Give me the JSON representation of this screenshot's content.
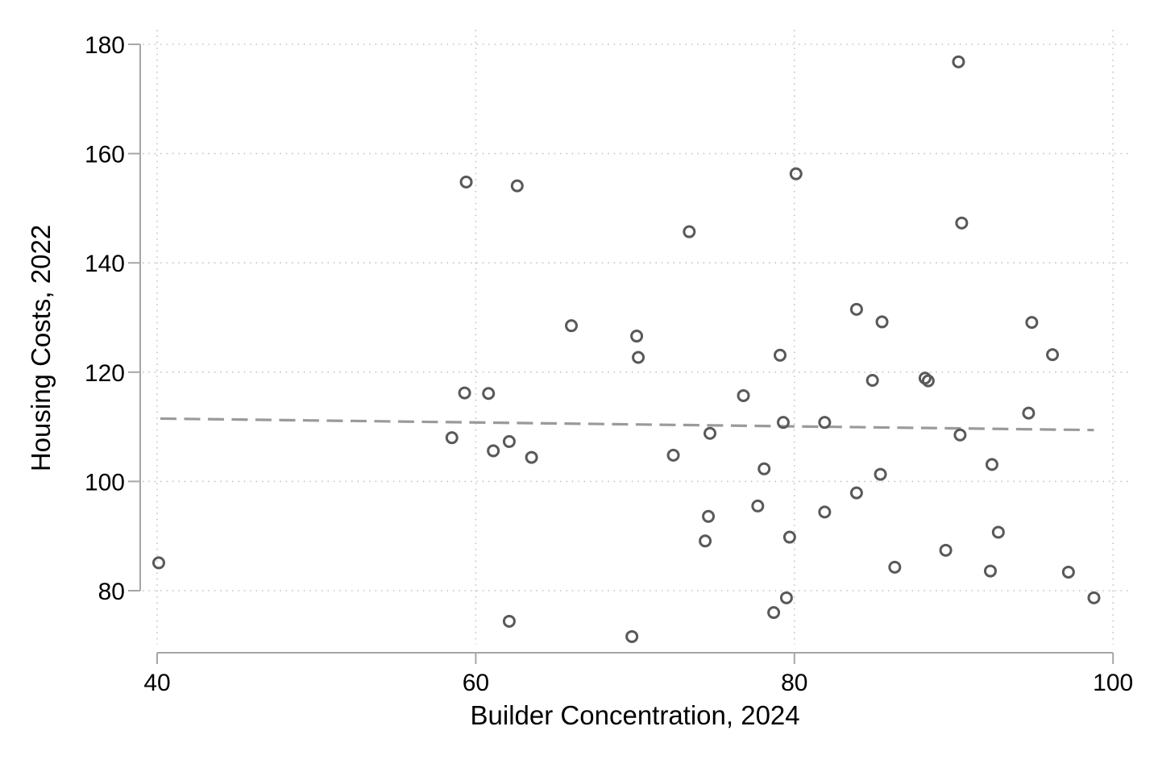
{
  "chart_data": {
    "type": "scatter",
    "title": "",
    "xlabel": "Builder Concentration, 2024",
    "ylabel": "Housing Costs, 2022",
    "xlim": [
      40,
      100
    ],
    "ylim": [
      80,
      180
    ],
    "xticks": [
      40,
      60,
      80,
      100
    ],
    "xtick_labels": [
      "40",
      "60",
      "80",
      "100"
    ],
    "yticks": [
      80,
      100,
      120,
      140,
      160,
      180
    ],
    "ytick_labels": [
      "80",
      "100",
      "120",
      "140",
      "160",
      "180"
    ],
    "grid": "dotted",
    "legend": "none",
    "marker": "open-circle",
    "points": [
      [
        40.1,
        85.1
      ],
      [
        58.5,
        108.0
      ],
      [
        59.3,
        116.2
      ],
      [
        59.4,
        154.8
      ],
      [
        60.8,
        116.1
      ],
      [
        61.1,
        105.6
      ],
      [
        62.1,
        107.3
      ],
      [
        62.1,
        74.4
      ],
      [
        62.6,
        154.1
      ],
      [
        63.5,
        104.4
      ],
      [
        66.0,
        128.5
      ],
      [
        69.8,
        71.6
      ],
      [
        70.1,
        126.6
      ],
      [
        70.2,
        122.7
      ],
      [
        72.4,
        104.8
      ],
      [
        73.4,
        145.7
      ],
      [
        74.4,
        89.1
      ],
      [
        74.6,
        93.6
      ],
      [
        74.7,
        108.8
      ],
      [
        76.8,
        115.7
      ],
      [
        77.7,
        95.5
      ],
      [
        78.1,
        102.3
      ],
      [
        78.7,
        76.0
      ],
      [
        79.1,
        123.1
      ],
      [
        79.3,
        110.8
      ],
      [
        79.5,
        78.7
      ],
      [
        79.7,
        89.8
      ],
      [
        80.1,
        156.3
      ],
      [
        81.9,
        110.8
      ],
      [
        81.9,
        94.4
      ],
      [
        83.9,
        131.5
      ],
      [
        83.9,
        97.9
      ],
      [
        84.9,
        118.5
      ],
      [
        85.4,
        101.3
      ],
      [
        85.5,
        129.2
      ],
      [
        86.3,
        84.3
      ],
      [
        88.2,
        118.9
      ],
      [
        88.4,
        118.4
      ],
      [
        89.5,
        87.4
      ],
      [
        90.3,
        176.8
      ],
      [
        90.4,
        108.5
      ],
      [
        90.5,
        147.3
      ],
      [
        92.3,
        83.6
      ],
      [
        92.4,
        103.1
      ],
      [
        92.8,
        90.7
      ],
      [
        94.7,
        112.5
      ],
      [
        94.9,
        129.1
      ],
      [
        96.2,
        123.2
      ],
      [
        97.2,
        83.4
      ],
      [
        98.8,
        78.7
      ]
    ],
    "trendline": {
      "type": "linear-fit",
      "style": "dashed",
      "x1": 40.2,
      "y1": 111.5,
      "x2": 98.8,
      "y2": 109.4
    },
    "colors": {
      "marker": "#595959",
      "trend": "#9a9a9a",
      "axis": "#a6a6a6",
      "grid": "#c4c4c4",
      "text": "#000000",
      "background": "#ffffff"
    }
  }
}
